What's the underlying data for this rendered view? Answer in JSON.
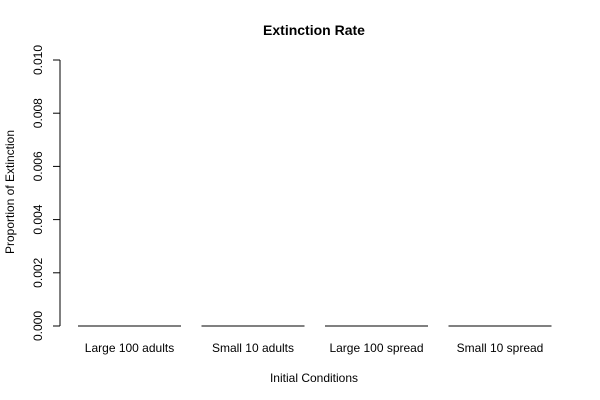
{
  "chart_data": {
    "type": "bar",
    "title": "Extinction Rate",
    "xlabel": "Initial Conditions",
    "ylabel": "Proportion of Extinction",
    "categories": [
      "Large 100 adults",
      "Small 10 adults",
      "Large 100 spread",
      "Small 10 spread"
    ],
    "values": [
      0,
      0,
      0,
      0
    ],
    "ylim": [
      0,
      0.01
    ],
    "yticks": [
      "0.000",
      "0.002",
      "0.004",
      "0.006",
      "0.008",
      "0.010"
    ],
    "grid": false,
    "legend": "none"
  }
}
